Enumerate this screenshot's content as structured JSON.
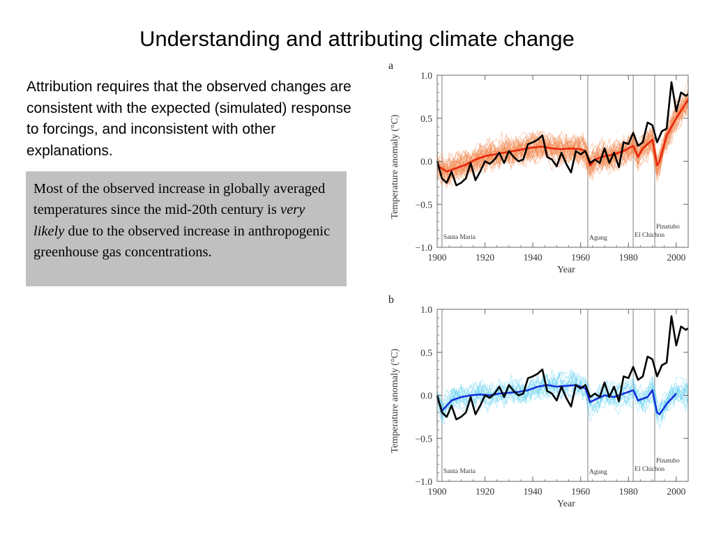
{
  "slide": {
    "title": "Understanding and attributing climate change",
    "intro": "Attribution requires that the observed changes are consistent with the expected (simulated) response to forcings, and inconsistent with other explanations.",
    "box": {
      "text_before": "Most of the observed increase in globally averaged temperatures since the mid-20th century is ",
      "emphasis": "very likely",
      "text_after": " due to the observed increase in anthropogenic greenhouse gas concentrations."
    }
  },
  "colors": {
    "observed": "#000000",
    "panel_a_mean": "#e8250a",
    "panel_a_runs": "#f28a52",
    "panel_b_mean": "#1530d8",
    "panel_b_runs": "#5fd0f0",
    "box_background": "#c0c0c0",
    "eruption_lines": "#9a9a9a"
  },
  "chart_data": [
    {
      "type": "line",
      "panel_label": "a",
      "xlabel": "Year",
      "ylabel": "Temperature anomaly (°C)",
      "xlim": [
        1900,
        2005
      ],
      "ylim": [
        -1.0,
        1.0
      ],
      "xticks": [
        1900,
        1920,
        1940,
        1960,
        1980,
        2000
      ],
      "yticks": [
        -1.0,
        -0.5,
        0.0,
        0.5,
        1.0
      ],
      "ytick_labels": [
        "−1.0",
        "−0.5",
        "0.0",
        "0.5",
        "1.0"
      ],
      "grid": false,
      "eruptions": [
        {
          "name": "Santa Maria",
          "year": 1902
        },
        {
          "name": "Agung",
          "year": 1963
        },
        {
          "name": "El Chichon",
          "year": 1982
        },
        {
          "name": "Pinatubo",
          "year": 1991
        }
      ],
      "series": [
        {
          "x": [
            1900,
            1902,
            1904,
            1906,
            1908,
            1910,
            1912,
            1914,
            1916,
            1918,
            1920,
            1922,
            1924,
            1926,
            1928,
            1930,
            1932,
            1934,
            1936,
            1938,
            1940,
            1942,
            1944,
            1946,
            1948,
            1950,
            1952,
            1954,
            1956,
            1958,
            1960,
            1962,
            1964,
            1966,
            1968,
            1970,
            1972,
            1974,
            1976,
            1978,
            1980,
            1982,
            1984,
            1986,
            1988,
            1990,
            1992,
            1994,
            1996,
            1998,
            2000,
            2002,
            2004,
            2005
          ],
          "values": [
            0.0,
            -0.2,
            -0.25,
            -0.12,
            -0.28,
            -0.25,
            -0.2,
            -0.02,
            -0.22,
            -0.12,
            0.0,
            -0.03,
            0.02,
            0.1,
            -0.02,
            0.12,
            0.05,
            0.0,
            0.02,
            0.2,
            0.22,
            0.25,
            0.3,
            0.05,
            0.02,
            -0.06,
            0.1,
            -0.03,
            -0.13,
            0.12,
            0.08,
            0.12,
            -0.02,
            0.02,
            -0.02,
            0.15,
            -0.02,
            0.1,
            -0.07,
            0.22,
            0.2,
            0.33,
            0.18,
            0.22,
            0.45,
            0.42,
            0.22,
            0.35,
            0.38,
            0.92,
            0.58,
            0.8,
            0.76,
            0.78
          ]
        },
        {
          "x": [
            1900,
            1904,
            1908,
            1912,
            1916,
            1920,
            1924,
            1928,
            1932,
            1936,
            1940,
            1944,
            1948,
            1952,
            1956,
            1960,
            1962,
            1964,
            1966,
            1970,
            1974,
            1978,
            1982,
            1984,
            1986,
            1990,
            1992,
            1993,
            1996,
            2000,
            2005
          ],
          "values": [
            -0.05,
            -0.12,
            -0.08,
            -0.04,
            0.02,
            0.06,
            0.08,
            0.1,
            0.12,
            0.14,
            0.16,
            0.17,
            0.15,
            0.14,
            0.15,
            0.14,
            0.12,
            -0.05,
            0.02,
            0.06,
            0.08,
            0.12,
            0.18,
            0.05,
            0.15,
            0.25,
            -0.05,
            0.0,
            0.3,
            0.5,
            0.72
          ]
        }
      ]
    },
    {
      "type": "line",
      "panel_label": "b",
      "xlabel": "Year",
      "ylabel": "Temperature anomaly (°C)",
      "xlim": [
        1900,
        2005
      ],
      "ylim": [
        -1.0,
        1.0
      ],
      "xticks": [
        1900,
        1920,
        1940,
        1960,
        1980,
        2000
      ],
      "yticks": [
        -1.0,
        -0.5,
        0.0,
        0.5,
        1.0
      ],
      "ytick_labels": [
        "−1.0",
        "−0.5",
        "0.0",
        "0.5",
        "1.0"
      ],
      "grid": false,
      "eruptions": [
        {
          "name": "Santa Maria",
          "year": 1902
        },
        {
          "name": "Agung",
          "year": 1963
        },
        {
          "name": "El Chichon",
          "year": 1982
        },
        {
          "name": "Pinatubo",
          "year": 1991
        }
      ],
      "series": [
        {
          "x": [
            1900,
            1902,
            1904,
            1906,
            1908,
            1910,
            1912,
            1914,
            1916,
            1918,
            1920,
            1922,
            1924,
            1926,
            1928,
            1930,
            1932,
            1934,
            1936,
            1938,
            1940,
            1942,
            1944,
            1946,
            1948,
            1950,
            1952,
            1954,
            1956,
            1958,
            1960,
            1962,
            1964,
            1966,
            1968,
            1970,
            1972,
            1974,
            1976,
            1978,
            1980,
            1982,
            1984,
            1986,
            1988,
            1990,
            1992,
            1994,
            1996,
            1998,
            2000,
            2002,
            2004,
            2005
          ],
          "values": [
            0.0,
            -0.2,
            -0.25,
            -0.12,
            -0.28,
            -0.25,
            -0.2,
            -0.02,
            -0.22,
            -0.12,
            0.0,
            -0.03,
            0.02,
            0.1,
            -0.02,
            0.12,
            0.05,
            0.0,
            0.02,
            0.2,
            0.22,
            0.25,
            0.3,
            0.05,
            0.02,
            -0.06,
            0.1,
            -0.03,
            -0.13,
            0.12,
            0.08,
            0.12,
            -0.02,
            0.02,
            -0.02,
            0.15,
            -0.02,
            0.1,
            -0.07,
            0.22,
            0.2,
            0.33,
            0.18,
            0.22,
            0.45,
            0.42,
            0.22,
            0.35,
            0.38,
            0.92,
            0.58,
            0.8,
            0.76,
            0.78
          ]
        },
        {
          "x": [
            1900,
            1902,
            1906,
            1910,
            1914,
            1918,
            1922,
            1926,
            1930,
            1934,
            1938,
            1942,
            1946,
            1950,
            1954,
            1958,
            1962,
            1964,
            1966,
            1970,
            1974,
            1978,
            1982,
            1984,
            1988,
            1990,
            1992,
            1993,
            1996,
            2000
          ],
          "values": [
            -0.02,
            -0.18,
            -0.06,
            -0.02,
            0.0,
            0.01,
            0.0,
            0.02,
            0.03,
            0.04,
            0.06,
            0.1,
            0.12,
            0.1,
            0.11,
            0.12,
            0.08,
            -0.08,
            -0.05,
            0.0,
            -0.02,
            0.02,
            0.06,
            -0.06,
            -0.02,
            0.06,
            -0.2,
            -0.22,
            -0.1,
            0.02
          ]
        }
      ]
    }
  ]
}
